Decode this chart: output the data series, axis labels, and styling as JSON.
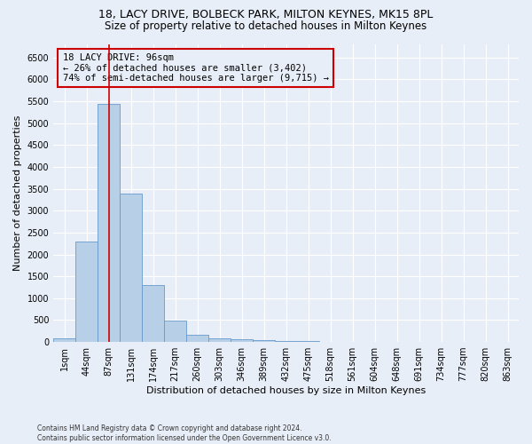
{
  "title1": "18, LACY DRIVE, BOLBECK PARK, MILTON KEYNES, MK15 8PL",
  "title2": "Size of property relative to detached houses in Milton Keynes",
  "xlabel": "Distribution of detached houses by size in Milton Keynes",
  "ylabel": "Number of detached properties",
  "footer": "Contains HM Land Registry data © Crown copyright and database right 2024.\nContains public sector information licensed under the Open Government Licence v3.0.",
  "bar_categories": [
    "1sqm",
    "44sqm",
    "87sqm",
    "131sqm",
    "174sqm",
    "217sqm",
    "260sqm",
    "303sqm",
    "346sqm",
    "389sqm",
    "432sqm",
    "475sqm",
    "518sqm",
    "561sqm",
    "604sqm",
    "648sqm",
    "691sqm",
    "734sqm",
    "777sqm",
    "820sqm",
    "863sqm"
  ],
  "bar_values": [
    75,
    2300,
    5450,
    3400,
    1300,
    480,
    170,
    90,
    60,
    40,
    20,
    15,
    10,
    5,
    3,
    2,
    1,
    1,
    0,
    0,
    0
  ],
  "bar_color": "#b8cfe8",
  "bar_edge_color": "#6699cc",
  "ylim": [
    0,
    6800
  ],
  "yticks": [
    0,
    500,
    1000,
    1500,
    2000,
    2500,
    3000,
    3500,
    4000,
    4500,
    5000,
    5500,
    6000,
    6500
  ],
  "property_bin_index": 2,
  "vline_color": "#cc0000",
  "annotation_text": "18 LACY DRIVE: 96sqm\n← 26% of detached houses are smaller (3,402)\n74% of semi-detached houses are larger (9,715) →",
  "annotation_box_color": "#cc0000",
  "annotation_text_color": "#000000",
  "bg_color": "#e8eef7",
  "grid_color": "#ffffff",
  "title1_fontsize": 9,
  "title2_fontsize": 8.5,
  "xlabel_fontsize": 8,
  "ylabel_fontsize": 8,
  "annotation_fontsize": 7.5,
  "tick_fontsize": 7
}
